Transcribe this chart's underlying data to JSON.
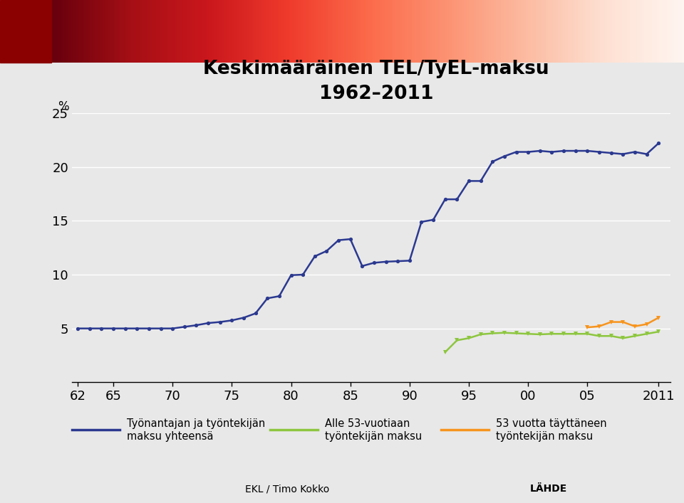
{
  "title_line1": "Keskimääräinen TEL/TyEL-maksu",
  "title_line2": "1962–2011",
  "ylabel": "%",
  "ylim": [
    0,
    25
  ],
  "yticks": [
    0,
    5,
    10,
    15,
    20,
    25
  ],
  "xtick_labels": [
    "62",
    "65",
    "70",
    "75",
    "80",
    "85",
    "90",
    "95",
    "00",
    "05",
    "2011"
  ],
  "xtick_values": [
    1962,
    1965,
    1970,
    1975,
    1980,
    1985,
    1990,
    1995,
    2000,
    2005,
    2011
  ],
  "background_color": "#e8e8e8",
  "plot_background": "#e8e8e8",
  "grid_color": "#ffffff",
  "line1_color": "#2b3990",
  "line2_color": "#8dc63f",
  "line3_color": "#f7941d",
  "legend1": "Työnantajan ja työntekijän\nmaksu yhteensä",
  "legend2": "Alle 53-vuotiaan\ntyöntekijän maksu",
  "legend3": "53 vuotta täyttäneen\ntyöntekijän maksu",
  "footer_left": "EKL / Timo Kokko",
  "footer_right": "LÄHDE",
  "total_years": [
    1962,
    1963,
    1964,
    1965,
    1966,
    1967,
    1968,
    1969,
    1970,
    1971,
    1972,
    1973,
    1974,
    1975,
    1976,
    1977,
    1978,
    1979,
    1980,
    1981,
    1982,
    1983,
    1984,
    1985,
    1986,
    1987,
    1988,
    1989,
    1990,
    1991,
    1992,
    1993,
    1994,
    1995,
    1996,
    1997,
    1998,
    1999,
    2000,
    2001,
    2002,
    2003,
    2004,
    2005,
    2006,
    2007,
    2008,
    2009,
    2010,
    2011
  ],
  "total_values": [
    5.0,
    5.0,
    5.0,
    5.0,
    5.0,
    5.0,
    5.0,
    5.0,
    5.0,
    5.15,
    5.3,
    5.5,
    5.6,
    5.75,
    6.0,
    6.4,
    7.8,
    8.0,
    9.95,
    10.0,
    11.7,
    12.2,
    13.2,
    13.3,
    10.8,
    11.1,
    11.2,
    11.25,
    11.3,
    14.9,
    15.1,
    17.0,
    17.0,
    18.7,
    18.7,
    20.5,
    21.0,
    21.4,
    21.4,
    21.5,
    21.4,
    21.5,
    21.5,
    21.5,
    21.4,
    21.3,
    21.2,
    21.4,
    21.2,
    22.2
  ],
  "under53_years": [
    1993,
    1994,
    1995,
    1996,
    1997,
    1998,
    1999,
    2000,
    2001,
    2002,
    2003,
    2004,
    2005,
    2006,
    2007,
    2008,
    2009,
    2010,
    2011
  ],
  "under53_values": [
    2.8,
    3.9,
    4.1,
    4.45,
    4.55,
    4.6,
    4.55,
    4.5,
    4.45,
    4.5,
    4.5,
    4.5,
    4.5,
    4.3,
    4.3,
    4.1,
    4.3,
    4.5,
    4.7
  ],
  "over53_years": [
    2005,
    2006,
    2007,
    2008,
    2009,
    2010,
    2011
  ],
  "over53_values": [
    5.1,
    5.2,
    5.6,
    5.6,
    5.2,
    5.4,
    6.0
  ]
}
